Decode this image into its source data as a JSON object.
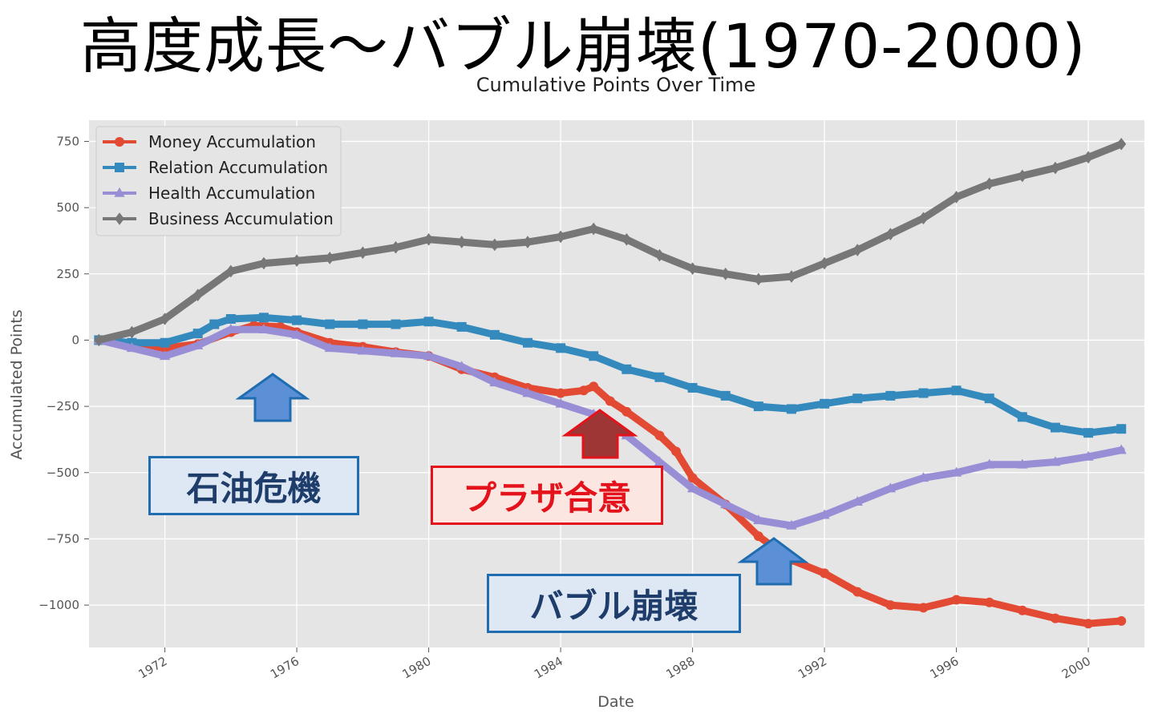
{
  "page_title": "高度成長～バブル崩壊(1970-2000)",
  "callouts": {
    "oil_crisis": "石油危機",
    "plaza_accord": "プラザ合意",
    "bubble_burst": "バブル崩壊"
  },
  "colors": {
    "plot_background": "#e5e5e5",
    "grid": "#ffffff",
    "arrow_blue": "#5b8fd6",
    "arrow_red": "#9e3636"
  },
  "chart_data": {
    "type": "line",
    "title": "Cumulative Points Over Time",
    "xlabel": "Date",
    "ylabel": "Accumulated Points",
    "xlim": [
      1969.7,
      2001.7
    ],
    "ylim": [
      -1160,
      830
    ],
    "grid": true,
    "legend_position": "top-left",
    "x_ticks": [
      1972,
      1976,
      1980,
      1984,
      1988,
      1992,
      1996,
      2000
    ],
    "x_tick_labels": [
      "1972",
      "1976",
      "1980",
      "1984",
      "1988",
      "1992",
      "1996",
      "2000"
    ],
    "y_ticks": [
      750,
      500,
      250,
      0,
      -250,
      -500,
      -750,
      -1000
    ],
    "y_tick_labels": [
      "750",
      "500",
      "250",
      "0",
      "−250",
      "−500",
      "−750",
      "−1000"
    ],
    "series": [
      {
        "name": "Money Accumulation",
        "color": "#e24a33",
        "marker": "circle",
        "x": [
          1970,
          1971,
          1972,
          1973,
          1974,
          1974.7,
          1975.5,
          1976,
          1977,
          1978,
          1979,
          1980,
          1981,
          1982,
          1983,
          1984,
          1984.7,
          1985,
          1985.5,
          1986,
          1987,
          1987.5,
          1988,
          1989,
          1990,
          1991,
          1992,
          1993,
          1994,
          1995,
          1996,
          1997,
          1998,
          1999,
          2000,
          2001
        ],
        "y": [
          0,
          -15,
          -30,
          -15,
          30,
          55,
          50,
          30,
          -10,
          -25,
          -45,
          -60,
          -110,
          -140,
          -180,
          -200,
          -190,
          -175,
          -230,
          -270,
          -360,
          -420,
          -520,
          -620,
          -740,
          -830,
          -880,
          -950,
          -1000,
          -1010,
          -980,
          -990,
          -1020,
          -1050,
          -1070,
          -1060
        ]
      },
      {
        "name": "Relation Accumulation",
        "color": "#348abd",
        "marker": "square",
        "x": [
          1970,
          1971,
          1972,
          1973,
          1973.5,
          1974,
          1975,
          1976,
          1977,
          1978,
          1979,
          1980,
          1981,
          1982,
          1983,
          1984,
          1985,
          1986,
          1987,
          1988,
          1989,
          1990,
          1991,
          1992,
          1993,
          1994,
          1995,
          1996,
          1997,
          1998,
          1999,
          2000,
          2001
        ],
        "y": [
          0,
          -10,
          -10,
          25,
          60,
          80,
          85,
          75,
          60,
          60,
          60,
          70,
          50,
          20,
          -10,
          -30,
          -60,
          -110,
          -140,
          -180,
          -210,
          -250,
          -260,
          -240,
          -220,
          -210,
          -200,
          -190,
          -220,
          -290,
          -330,
          -350,
          -335
        ]
      },
      {
        "name": "Health Accumulation",
        "color": "#988ed5",
        "marker": "triangle",
        "x": [
          1970,
          1971,
          1972,
          1973,
          1974,
          1975,
          1976,
          1977,
          1978,
          1979,
          1980,
          1981,
          1982,
          1983,
          1984,
          1985,
          1986,
          1987,
          1988,
          1989,
          1990,
          1991,
          1992,
          1993,
          1994,
          1995,
          1996,
          1997,
          1998,
          1999,
          2000,
          2001
        ],
        "y": [
          0,
          -30,
          -60,
          -20,
          40,
          40,
          20,
          -30,
          -40,
          -50,
          -60,
          -100,
          -160,
          -200,
          -240,
          -280,
          -360,
          -460,
          -560,
          -620,
          -680,
          -700,
          -660,
          -610,
          -560,
          -520,
          -500,
          -470,
          -470,
          -460,
          -440,
          -415
        ]
      },
      {
        "name": "Business Accumulation",
        "color": "#777777",
        "marker": "diamond",
        "x": [
          1970,
          1971,
          1972,
          1973,
          1974,
          1975,
          1976,
          1977,
          1978,
          1979,
          1980,
          1981,
          1982,
          1983,
          1984,
          1985,
          1986,
          1987,
          1988,
          1989,
          1990,
          1991,
          1992,
          1993,
          1994,
          1995,
          1996,
          1997,
          1998,
          1999,
          2000,
          2001
        ],
        "y": [
          0,
          30,
          80,
          170,
          260,
          290,
          300,
          310,
          330,
          350,
          380,
          370,
          360,
          370,
          390,
          420,
          380,
          320,
          270,
          250,
          230,
          240,
          290,
          340,
          400,
          460,
          540,
          590,
          620,
          650,
          690,
          740
        ]
      }
    ]
  }
}
